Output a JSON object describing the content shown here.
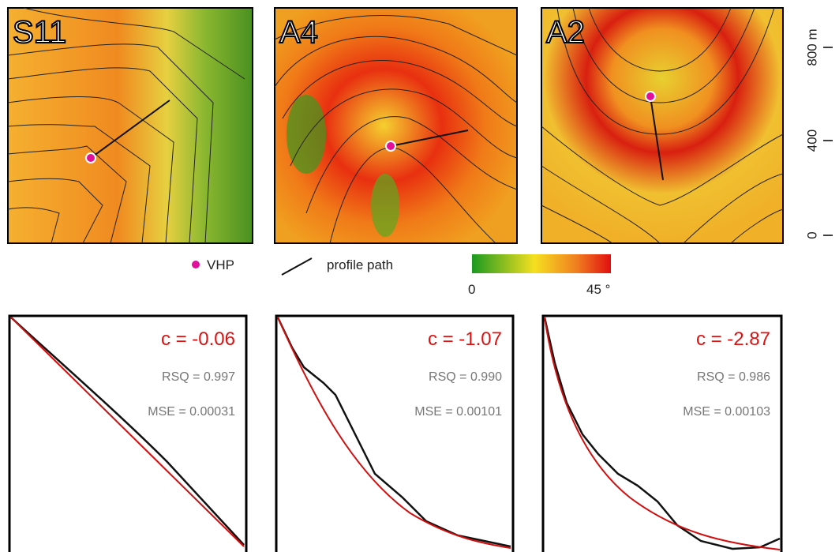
{
  "maps": [
    {
      "label": "S11"
    },
    {
      "label": "A4"
    },
    {
      "label": "A2"
    }
  ],
  "legend": {
    "point": "VHP",
    "line": "profile path",
    "colorbar": {
      "min": "0",
      "max": "45 °"
    }
  },
  "scale": {
    "labels": [
      "800 m",
      "400",
      "0"
    ]
  },
  "profiles": [
    {
      "c": "c = -0.06",
      "rsq": "RSQ = 0.997",
      "mse": "MSE = 0.00031"
    },
    {
      "c": "c = -1.07",
      "rsq": "RSQ = 0.990",
      "mse": "MSE = 0.00101"
    },
    {
      "c": "c = -2.87",
      "rsq": "RSQ = 0.986",
      "mse": "MSE = 0.00103"
    }
  ]
}
